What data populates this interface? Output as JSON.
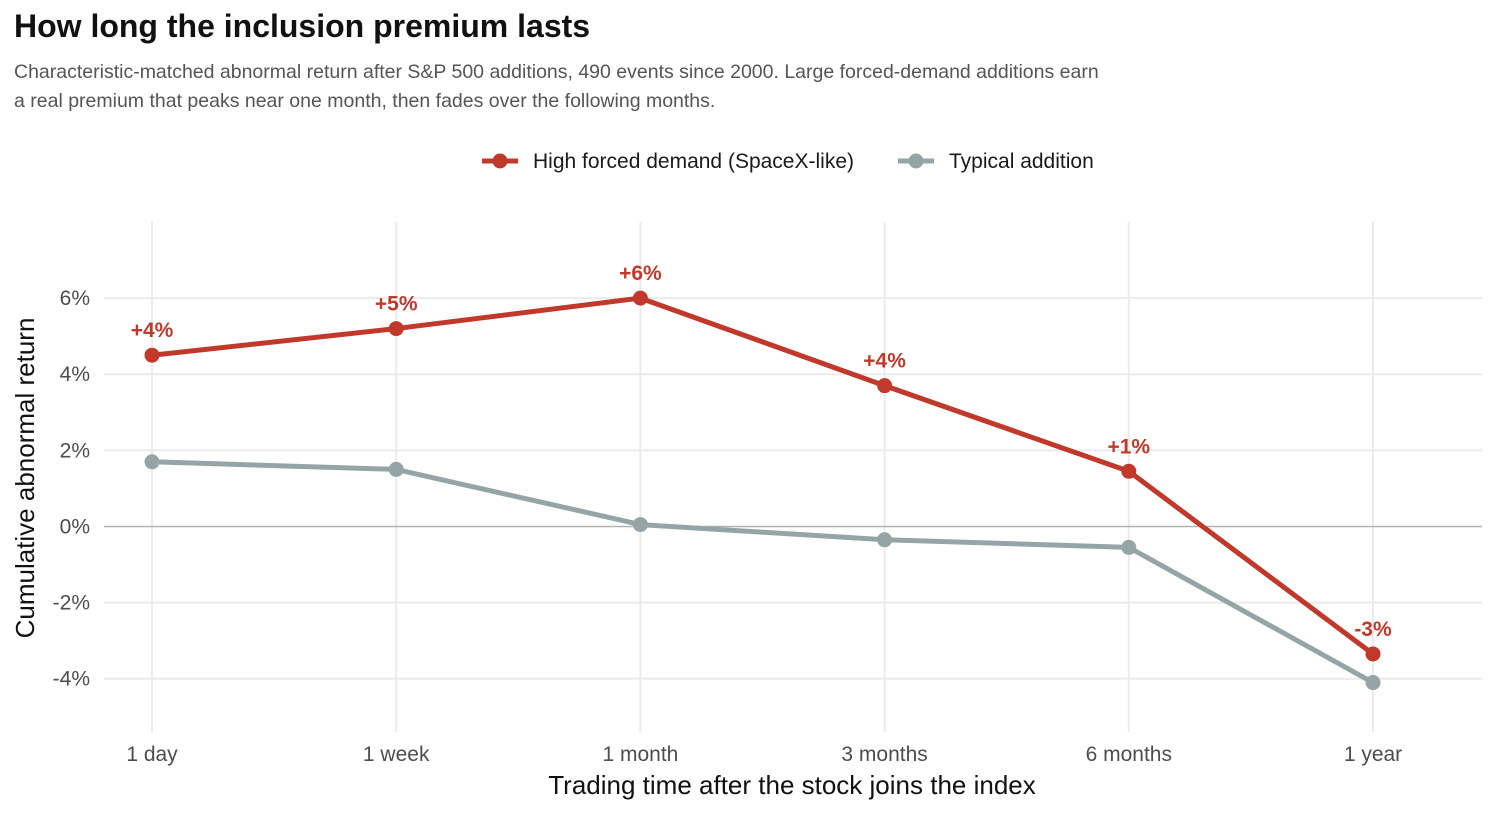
{
  "chart_data": {
    "type": "line",
    "title": "How long the inclusion premium lasts",
    "subtitle": "Characteristic-matched abnormal return after S&P 500 additions, 490 events since 2000. Large forced-demand additions earn a real premium that peaks near one month, then fades over the following months.",
    "xlabel": "Trading time after the stock joins the index",
    "ylabel": "Cumulative abnormal return",
    "categories": [
      "1 day",
      "1 week",
      "1 month",
      "3 months",
      "6 months",
      "1 year"
    ],
    "y_ticks": [
      -4,
      -2,
      0,
      2,
      4,
      6
    ],
    "y_tick_labels": [
      "-4%",
      "-2%",
      "0%",
      "2%",
      "4%",
      "6%"
    ],
    "ylim": [
      -5.4,
      8
    ],
    "grid": true,
    "legend_position": "top",
    "series": [
      {
        "name": "High forced demand (SpaceX-like)",
        "color": "#c0392b",
        "values": [
          4.5,
          5.2,
          6.0,
          3.7,
          1.45,
          -3.35
        ],
        "labels": [
          "+4%",
          "+5%",
          "+6%",
          "+4%",
          "+1%",
          "-3%"
        ]
      },
      {
        "name": "Typical addition",
        "color": "#95a5a6",
        "values": [
          1.7,
          1.5,
          0.05,
          -0.35,
          -0.55,
          -4.1
        ]
      }
    ]
  }
}
